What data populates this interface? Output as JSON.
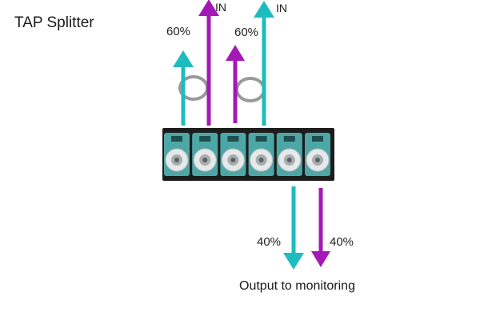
{
  "title": "TAP Splitter",
  "labels": {
    "input_1": "IN",
    "input_2": "IN",
    "monitor_1": "60%",
    "monitor_2": "60%",
    "output_1": "40%",
    "output_2": "40%"
  },
  "caption": "Output to monitoring",
  "colors": {
    "teal": "#1dbcbe",
    "magenta": "#a419b5",
    "ring": "#9a9a9a",
    "panel": "#1c1c1c",
    "port_body": "#4ea7a7"
  },
  "ports": 6
}
